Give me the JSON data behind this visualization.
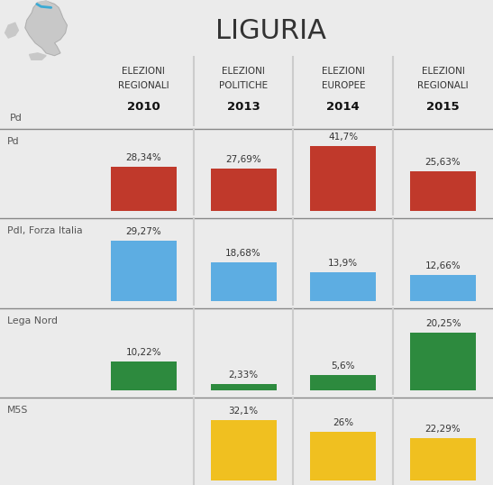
{
  "title": "LIGURIA",
  "bg_color": "#ebebeb",
  "white_bg": "#ffffff",
  "col_labels": [
    [
      "ELEZIONI",
      "REGIONALI",
      "2010"
    ],
    [
      "ELEZIONI",
      "POLITICHE",
      "2013"
    ],
    [
      "ELEZIONI",
      "EUROPEE",
      "2014"
    ],
    [
      "ELEZIONI",
      "REGIONALI",
      "2015"
    ]
  ],
  "parties": [
    {
      "name": "Pd",
      "color": "#c0392b",
      "values": [
        28.34,
        27.69,
        41.7,
        25.63
      ],
      "labels": [
        "28,34%",
        "27,69%",
        "41,7%",
        "25,63%"
      ],
      "max_val": 46
    },
    {
      "name": "PdI, Forza Italia",
      "color": "#5dade2",
      "values": [
        29.27,
        18.68,
        13.9,
        12.66
      ],
      "labels": [
        "29,27%",
        "18,68%",
        "13,9%",
        "12,66%"
      ],
      "max_val": 35
    },
    {
      "name": "Lega Nord",
      "color": "#2d8a3e",
      "values": [
        10.22,
        2.33,
        5.6,
        20.25
      ],
      "labels": [
        "10,22%",
        "2,33%",
        "5,6%",
        "20,25%"
      ],
      "max_val": 25
    },
    {
      "name": "M5S",
      "color": "#f0c020",
      "values": [
        null,
        32.1,
        26.0,
        22.29
      ],
      "labels": [
        null,
        "32,1%",
        "26%",
        "22,29%"
      ],
      "max_val": 38
    }
  ],
  "divider_color": "#cccccc",
  "separator_color": "#888888",
  "label_color": "#555555",
  "text_color": "#333333"
}
